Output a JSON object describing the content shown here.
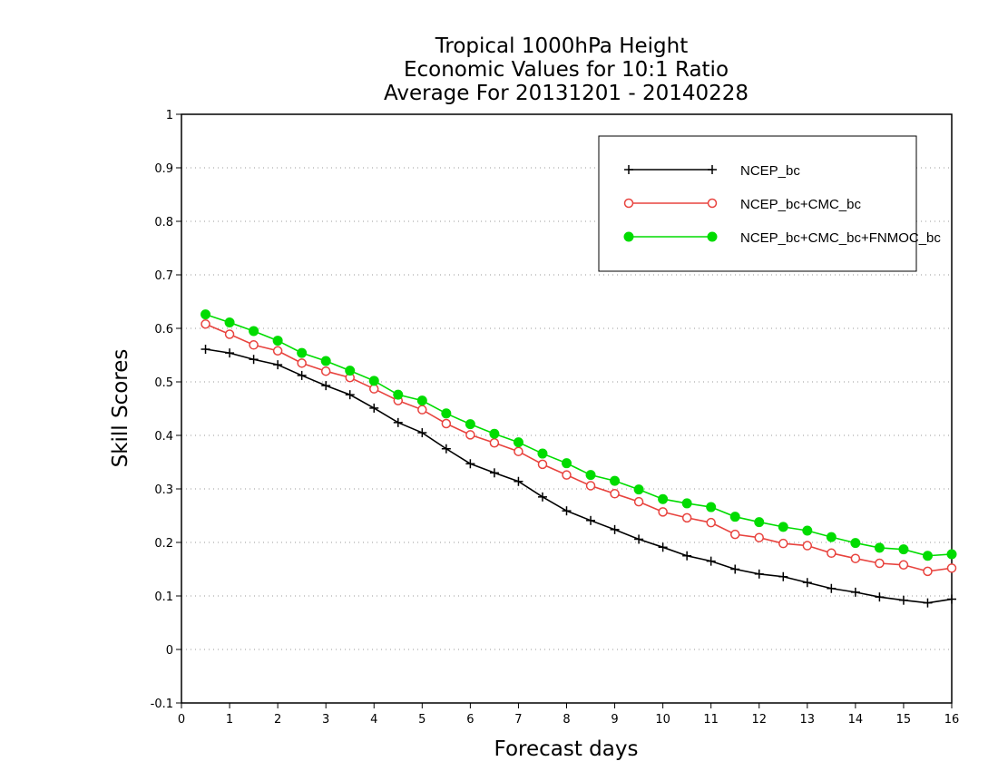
{
  "chart_data": {
    "type": "line",
    "title_lines": [
      "Tropical 1000hPa Height",
      "Economic Values for 10:1 Ratio",
      "Average For 20131201 - 20140228"
    ],
    "xlabel": "Forecast days",
    "ylabel": "Skill Scores",
    "xlim": [
      0,
      16
    ],
    "ylim": [
      -0.1,
      1
    ],
    "x_ticks": [
      0,
      1,
      2,
      3,
      4,
      5,
      6,
      7,
      8,
      9,
      10,
      11,
      12,
      13,
      14,
      15,
      16
    ],
    "x_tick_labels": [
      "0",
      "1",
      "2",
      "3",
      "4",
      "5",
      "6",
      "7",
      "8",
      "9",
      "10",
      "11",
      "12",
      "13",
      "14",
      "15",
      "16"
    ],
    "y_ticks": [
      -0.1,
      0,
      0.1,
      0.2,
      0.3,
      0.4,
      0.5,
      0.6,
      0.7,
      0.8,
      0.9,
      1
    ],
    "y_tick_labels": [
      "-0.1",
      "0",
      "0.1",
      "0.2",
      "0.3",
      "0.4",
      "0.5",
      "0.6",
      "0.7",
      "0.8",
      "0.9",
      "1"
    ],
    "grid": "horizontal-dotted",
    "legend_position": "top-right",
    "x": [
      0.5,
      1,
      1.5,
      2,
      2.5,
      3,
      3.5,
      4,
      4.5,
      5,
      5.5,
      6,
      6.5,
      7,
      7.5,
      8,
      8.5,
      9,
      9.5,
      10,
      10.5,
      11,
      11.5,
      12,
      12.5,
      13,
      13.5,
      14,
      14.5,
      15,
      15.5,
      16
    ],
    "series": [
      {
        "name": "NCEP_bc",
        "color": "#000000",
        "marker": "plus",
        "values": [
          0.561,
          0.554,
          0.542,
          0.532,
          0.512,
          0.493,
          0.476,
          0.451,
          0.424,
          0.405,
          0.375,
          0.347,
          0.33,
          0.314,
          0.285,
          0.259,
          0.241,
          0.224,
          0.206,
          0.191,
          0.175,
          0.165,
          0.15,
          0.141,
          0.136,
          0.125,
          0.114,
          0.107,
          0.098,
          0.092,
          0.087,
          0.094
        ]
      },
      {
        "name": "NCEP_bc+CMC_bc",
        "color": "#e8433e",
        "marker": "open-circle",
        "values": [
          0.608,
          0.589,
          0.569,
          0.558,
          0.535,
          0.52,
          0.508,
          0.487,
          0.465,
          0.448,
          0.422,
          0.401,
          0.386,
          0.37,
          0.346,
          0.326,
          0.306,
          0.291,
          0.276,
          0.257,
          0.246,
          0.237,
          0.215,
          0.209,
          0.198,
          0.194,
          0.18,
          0.17,
          0.161,
          0.158,
          0.146,
          0.152
        ]
      },
      {
        "name": "NCEP_bc+CMC_bc+FNMOC_bc",
        "color": "#00dc00",
        "marker": "filled-circle",
        "values": [
          0.626,
          0.611,
          0.595,
          0.577,
          0.554,
          0.539,
          0.521,
          0.502,
          0.476,
          0.465,
          0.441,
          0.421,
          0.403,
          0.387,
          0.366,
          0.348,
          0.326,
          0.315,
          0.299,
          0.281,
          0.273,
          0.266,
          0.248,
          0.238,
          0.229,
          0.222,
          0.21,
          0.199,
          0.19,
          0.187,
          0.175,
          0.178
        ]
      }
    ]
  }
}
